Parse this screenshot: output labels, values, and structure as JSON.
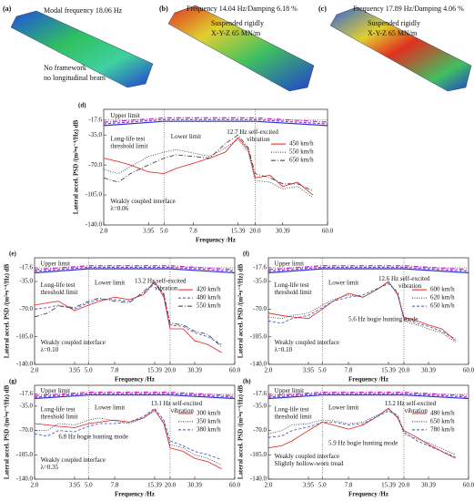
{
  "panels": [
    {
      "label": "(a)",
      "texts": [
        "Modal frequency 18.06 Hz",
        "No framework",
        "no longitudinal beam"
      ]
    },
    {
      "label": "(b)",
      "texts": [
        "Frequency 14.04 Hz/Damping 6.18 %",
        "Suspended rigidly",
        "X-Y-Z 65 MN/m"
      ]
    },
    {
      "label": "(c)",
      "texts": [
        "Frequency 17.89 Hz/Damping 4.06 %",
        "Suspended rigidly",
        "X-Y-Z 65 MN/m"
      ]
    }
  ],
  "chart_data": [
    {
      "type": "line",
      "label": "(d)",
      "xlabel": "Frequency /Hz",
      "ylabel": "Lateral accel. PSD /(m²•s⁻⁴/Hz) dB",
      "log_x": true,
      "legend": "right",
      "xlim": [
        2,
        60
      ],
      "ylim": [
        -140,
        -5
      ],
      "xticks": [
        {
          "value": 2,
          "label": "2.0"
        },
        3.95,
        {
          "value": 5,
          "label": "5.0"
        },
        7.8,
        15.39,
        {
          "value": 20,
          "label": "20.0"
        },
        30.39,
        {
          "value": 60,
          "label": "60.0"
        }
      ],
      "yticks": [
        -17.6,
        {
          "value": -35,
          "label": "-35.0"
        },
        {
          "value": -70,
          "label": "-70.0"
        },
        {
          "value": -105,
          "label": "-105.0"
        },
        {
          "value": -140,
          "label": "-140.0"
        }
      ],
      "vlines": [
        5,
        20
      ],
      "hline": -17.6,
      "hline_color": "#e02020",
      "limits": [
        {
          "name": [
            "Upper limit"
          ],
          "color": "#d020d0",
          "dash": "dashdot",
          "x": [
            2,
            5,
            20,
            60
          ],
          "values": [
            -20,
            -15,
            -15,
            -20
          ]
        },
        {
          "name": [
            "Long-life test",
            "threshold limit"
          ],
          "color": "#8040c0",
          "dash": "dashed",
          "x": [
            2,
            5,
            20,
            60
          ],
          "values": [
            -22,
            -17,
            -17,
            -22
          ]
        },
        {
          "name": [
            "Lower limit"
          ],
          "color": "#3030e0",
          "dash": "solid",
          "x": [
            2,
            5,
            20,
            60
          ],
          "values": [
            -24,
            -19,
            -19,
            -24
          ]
        }
      ],
      "x": [
        2,
        2.5,
        3,
        3.95,
        5,
        6,
        7.8,
        10,
        12.7,
        15.39,
        18,
        20,
        25,
        30.39,
        38,
        48
      ],
      "series": [
        {
          "name": "450 km/h",
          "color": "#e02020",
          "dash": "solid",
          "values": [
            -62,
            -66,
            -70,
            -78,
            -80,
            -74,
            -68,
            -62,
            -55,
            -38,
            -52,
            -85,
            -82,
            -95,
            -90,
            -105
          ]
        },
        {
          "name": "550 km/h",
          "color": "#333333",
          "dash": "dotted",
          "values": [
            -75,
            -80,
            -72,
            -60,
            -55,
            -52,
            -56,
            -60,
            -50,
            -40,
            -55,
            -88,
            -90,
            -98,
            -95,
            -108
          ]
        },
        {
          "name": "650 km/h",
          "color": "#333333",
          "dash": "dashdot",
          "values": [
            -85,
            -90,
            -80,
            -70,
            -62,
            -58,
            -60,
            -62,
            -45,
            -35,
            -50,
            -80,
            -85,
            -92,
            -92,
            -100
          ]
        }
      ],
      "annotations": [
        [
          "12.7 Hz self-excited",
          "vibration"
        ],
        [
          "Weakly coupled interface",
          "λ=0.06"
        ]
      ]
    },
    {
      "type": "line",
      "label": "(e)",
      "xlabel": "Frequency /Hz",
      "ylabel": "Lateral accel. PSD /(m²•s⁻⁴/Hz) dB",
      "log_x": true,
      "legend": "right",
      "xlim": [
        2,
        60
      ],
      "ylim": [
        -140,
        -5
      ],
      "xticks": [
        {
          "value": 2,
          "label": "2.0"
        },
        3.95,
        {
          "value": 5,
          "label": "5.0"
        },
        7.8,
        15.39,
        {
          "value": 20,
          "label": "20.0"
        },
        30.39,
        {
          "value": 60,
          "label": "60.0"
        }
      ],
      "yticks": [
        -17.6,
        {
          "value": -35,
          "label": "-35.0"
        },
        {
          "value": -70,
          "label": "-70.0"
        },
        {
          "value": -105,
          "label": "-105.0"
        },
        {
          "value": -140,
          "label": "-140.0"
        }
      ],
      "vlines": [
        5,
        20
      ],
      "hline": -17.6,
      "hline_color": "#e02020",
      "limits": [
        {
          "name": [
            "Upper limit"
          ],
          "color": "#d020d0",
          "dash": "dashdot",
          "x": [
            2,
            5,
            20,
            60
          ],
          "values": [
            -20,
            -15,
            -15,
            -20
          ]
        },
        {
          "name": [
            "Long-life test",
            "threshold limit"
          ],
          "color": "#8040c0",
          "dash": "dashed",
          "x": [
            2,
            5,
            20,
            60
          ],
          "values": [
            -22,
            -17,
            -17,
            -22
          ]
        },
        {
          "name": [
            "Lower limit"
          ],
          "color": "#3030e0",
          "dash": "solid",
          "x": [
            2,
            5,
            20,
            60
          ],
          "values": [
            -24,
            -19,
            -19,
            -24
          ]
        }
      ],
      "x": [
        2,
        2.5,
        3,
        3.95,
        5,
        6,
        7.8,
        10,
        12.7,
        15.39,
        18,
        20,
        25,
        30.39,
        38,
        48
      ],
      "series": [
        {
          "name": "420 km/h",
          "color": "#e02020",
          "dash": "solid",
          "values": [
            -65,
            -62,
            -60,
            -72,
            -65,
            -60,
            -55,
            -58,
            -52,
            -35,
            -55,
            -95,
            -95,
            -110,
            -115,
            -125
          ]
        },
        {
          "name": "480 km/h",
          "color": "#3050c0",
          "dash": "dashed",
          "values": [
            -70,
            -68,
            -65,
            -70,
            -62,
            -58,
            -58,
            -60,
            -50,
            -38,
            -50,
            -90,
            -92,
            -100,
            -105,
            -115
          ]
        },
        {
          "name": "550 km/h",
          "color": "#333333",
          "dash": "dashdot",
          "values": [
            -80,
            -75,
            -66,
            -68,
            -60,
            -56,
            -60,
            -62,
            -48,
            -36,
            -52,
            -88,
            -90,
            -98,
            -102,
            -118
          ]
        }
      ],
      "annotations": [
        [
          "13.2 Hz self-excited",
          "vibration"
        ],
        [
          "Weakly coupled interface",
          "λ=0.10"
        ]
      ]
    },
    {
      "type": "line",
      "label": "(f)",
      "xlabel": "Frequency /Hz",
      "ylabel": "Lateral accel. PSD /(m²•s⁻⁴/Hz) dB",
      "log_x": true,
      "legend": "right",
      "xlim": [
        2,
        60
      ],
      "ylim": [
        -140,
        -5
      ],
      "xticks": [
        {
          "value": 2,
          "label": "2.0"
        },
        3.95,
        {
          "value": 5,
          "label": "5.0"
        },
        7.8,
        15.39,
        {
          "value": 20,
          "label": "20.0"
        },
        30.39,
        {
          "value": 60,
          "label": "60.0"
        }
      ],
      "yticks": [
        -17.6,
        {
          "value": -35,
          "label": "-35.0"
        },
        {
          "value": -70,
          "label": "-70.0"
        },
        {
          "value": -105,
          "label": "-105.0"
        },
        {
          "value": -140,
          "label": "-140.0"
        }
      ],
      "vlines": [
        5,
        20
      ],
      "hline": -17.6,
      "hline_color": "#e02020",
      "limits": [
        {
          "name": [
            "Upper limit"
          ],
          "color": "#d020d0",
          "dash": "dashdot",
          "x": [
            2,
            5,
            20,
            60
          ],
          "values": [
            -20,
            -15,
            -15,
            -20
          ]
        },
        {
          "name": [
            "Long-life test",
            "threshold limit"
          ],
          "color": "#8040c0",
          "dash": "dashed",
          "x": [
            2,
            5,
            20,
            60
          ],
          "values": [
            -22,
            -17,
            -17,
            -22
          ]
        },
        {
          "name": [
            "Lower limit"
          ],
          "color": "#3030e0",
          "dash": "solid",
          "x": [
            2,
            5,
            20,
            60
          ],
          "values": [
            -24,
            -19,
            -19,
            -24
          ]
        }
      ],
      "x": [
        2,
        2.5,
        3,
        3.95,
        5,
        6,
        7.8,
        10,
        12.7,
        15.39,
        18,
        20,
        25,
        30.39,
        38,
        48
      ],
      "series": [
        {
          "name": "600 km/h",
          "color": "#e02020",
          "dash": "solid",
          "values": [
            -75,
            -78,
            -80,
            -82,
            -70,
            -60,
            -50,
            -55,
            -45,
            -35,
            -52,
            -80,
            -85,
            -90,
            -95,
            -110
          ]
        },
        {
          "name": "620 km/h",
          "color": "#333333",
          "dash": "dotted",
          "values": [
            -80,
            -82,
            -78,
            -75,
            -65,
            -58,
            -52,
            -55,
            -45,
            -36,
            -50,
            -85,
            -90,
            -95,
            -100,
            -112
          ]
        },
        {
          "name": "650 km/h",
          "color": "#3050c0",
          "dash": "dashed",
          "values": [
            -85,
            -88,
            -82,
            -78,
            -68,
            -60,
            -55,
            -52,
            -44,
            -38,
            -48,
            -82,
            -88,
            -92,
            -98,
            -108
          ]
        }
      ],
      "annotations": [
        [
          "12.6 Hz self-excited",
          "vibration"
        ],
        [
          "5.6 Hz bogie hunting mode"
        ],
        [
          "Weakly coupled interface",
          "λ=0.10"
        ]
      ]
    },
    {
      "type": "line",
      "label": "(g)",
      "xlabel": "Frequency /Hz",
      "ylabel": "Lateral accel. PSD /(m²•s⁻⁴/Hz) dB",
      "log_x": true,
      "legend": "right",
      "xlim": [
        2,
        60
      ],
      "ylim": [
        -140,
        -5
      ],
      "xticks": [
        {
          "value": 2,
          "label": "2.0"
        },
        3.95,
        {
          "value": 5,
          "label": "5.0"
        },
        7.8,
        15.39,
        {
          "value": 20,
          "label": "20.0"
        },
        30.39,
        {
          "value": 60,
          "label": "60.0"
        }
      ],
      "yticks": [
        -17.6,
        {
          "value": -35,
          "label": "-35.0"
        },
        {
          "value": -70,
          "label": "-70.0"
        },
        {
          "value": -105,
          "label": "-105.0"
        },
        {
          "value": -140,
          "label": "-140.0"
        }
      ],
      "vlines": [
        5,
        20
      ],
      "hline": -17.6,
      "hline_color": "#e02020",
      "limits": [
        {
          "name": [
            "Upper limit"
          ],
          "color": "#d020d0",
          "dash": "dashdot",
          "x": [
            2,
            5,
            20,
            60
          ],
          "values": [
            -20,
            -15,
            -15,
            -20
          ]
        },
        {
          "name": [
            "Long-life test",
            "threshold limit"
          ],
          "color": "#8040c0",
          "dash": "dashed",
          "x": [
            2,
            5,
            20,
            60
          ],
          "values": [
            -22,
            -17,
            -17,
            -22
          ]
        },
        {
          "name": [
            "Lower limit"
          ],
          "color": "#3030e0",
          "dash": "solid",
          "x": [
            2,
            5,
            20,
            60
          ],
          "values": [
            -24,
            -19,
            -19,
            -24
          ]
        }
      ],
      "x": [
        2,
        2.5,
        3,
        3.95,
        5,
        6,
        7.8,
        10,
        12.7,
        15.39,
        18,
        20,
        25,
        30.39,
        38,
        48
      ],
      "series": [
        {
          "name": "300 km/h",
          "color": "#e02020",
          "dash": "solid",
          "values": [
            -60,
            -62,
            -64,
            -66,
            -60,
            -58,
            -55,
            -58,
            -52,
            -40,
            -60,
            -95,
            -100,
            -110,
            -115,
            -125
          ]
        },
        {
          "name": "350 km/h",
          "color": "#333333",
          "dash": "dotted",
          "values": [
            -70,
            -70,
            -60,
            -62,
            -55,
            -52,
            -56,
            -60,
            -52,
            -42,
            -58,
            -90,
            -95,
            -105,
            -110,
            -120
          ]
        },
        {
          "name": "380 km/h",
          "color": "#3050c0",
          "dash": "dashed",
          "values": [
            -75,
            -78,
            -70,
            -72,
            -64,
            -60,
            -60,
            -58,
            -50,
            -38,
            -55,
            -85,
            -92,
            -100,
            -105,
            -112
          ]
        }
      ],
      "annotations": [
        [
          "13.1 Hz self-excited",
          "vibration"
        ],
        [
          "6.8 Hz bogie hunting mode"
        ],
        [
          "Weakly coupled interface",
          "λ=0.35"
        ]
      ]
    },
    {
      "type": "line",
      "label": "(h)",
      "xlabel": "Frequency /Hz",
      "ylabel": "Lateral accel. PSD /(m²•s⁻⁴/Hz) dB",
      "log_x": true,
      "legend": "right",
      "xlim": [
        2,
        60
      ],
      "ylim": [
        -140,
        -5
      ],
      "xticks": [
        {
          "value": 2,
          "label": "2.0"
        },
        3.95,
        {
          "value": 5,
          "label": "5.0"
        },
        7.8,
        15.39,
        {
          "value": 20,
          "label": "20.0"
        },
        30.39,
        {
          "value": 60,
          "label": "60.0"
        }
      ],
      "yticks": [
        -17.6,
        {
          "value": -35,
          "label": "-35.0"
        },
        {
          "value": -70,
          "label": "-70.0"
        },
        {
          "value": -105,
          "label": "-105.0"
        },
        {
          "value": -140,
          "label": "-140.0"
        }
      ],
      "vlines": [
        5,
        20
      ],
      "hline": -17.6,
      "hline_color": "#e02020",
      "limits": [
        {
          "name": [
            "Upper limit"
          ],
          "color": "#d020d0",
          "dash": "dashdot",
          "x": [
            2,
            5,
            20,
            60
          ],
          "values": [
            -20,
            -15,
            -15,
            -20
          ]
        },
        {
          "name": [
            "Long-life test",
            "threshold limit"
          ],
          "color": "#8040c0",
          "dash": "dashed",
          "x": [
            2,
            5,
            20,
            60
          ],
          "values": [
            -22,
            -17,
            -17,
            -22
          ]
        },
        {
          "name": [
            "Lower limit"
          ],
          "color": "#3030e0",
          "dash": "solid",
          "x": [
            2,
            5,
            20,
            60
          ],
          "values": [
            -24,
            -19,
            -19,
            -24
          ]
        }
      ],
      "x": [
        2,
        2.5,
        3,
        3.95,
        5,
        6,
        7.8,
        10,
        12.7,
        15.39,
        18,
        20,
        25,
        30.39,
        38,
        48
      ],
      "series": [
        {
          "name": "480 km/h",
          "color": "#e02020",
          "dash": "solid",
          "values": [
            -95,
            -92,
            -85,
            -70,
            -58,
            -62,
            -68,
            -62,
            -50,
            -38,
            -52,
            -70,
            -80,
            -90,
            -100,
            -110
          ]
        },
        {
          "name": "650 km/h",
          "color": "#333333",
          "dash": "dotted",
          "values": [
            -75,
            -70,
            -62,
            -60,
            -55,
            -56,
            -60,
            -58,
            -48,
            -40,
            -50,
            -75,
            -82,
            -88,
            -96,
            -105
          ]
        },
        {
          "name": "780 km/h",
          "color": "#3050c0",
          "dash": "dashed",
          "values": [
            -80,
            -78,
            -70,
            -65,
            -58,
            -58,
            -62,
            -60,
            -50,
            -42,
            -48,
            -72,
            -85,
            -92,
            -100,
            -108
          ]
        }
      ],
      "annotations": [
        [
          "13.2 Hz self-excited",
          "vibration"
        ],
        [
          "5.9 Hz bogie hunting mode"
        ],
        [
          "Weakly coupled interface",
          "Slightly hollow-worn tread"
        ]
      ]
    }
  ]
}
